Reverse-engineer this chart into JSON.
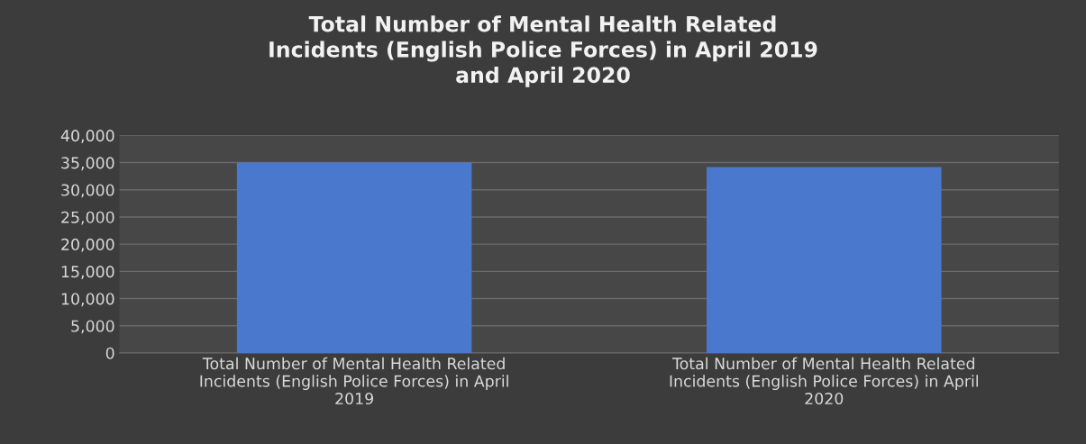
{
  "chart_data": {
    "type": "bar",
    "title": "Total Number of Mental Health Related\nIncidents (English Police Forces) in April 2019\nand April 2020",
    "categories": [
      "Total Number of Mental Health Related\nIncidents (English Police Forces) in April\n2019",
      "Total Number of Mental Health Related\nIncidents (English Police Forces) in April\n2020"
    ],
    "values": [
      35000,
      34200
    ],
    "color": "#4a78cc",
    "ylim": [
      0,
      40000
    ],
    "yticks": [
      {
        "value": 0,
        "label": "0"
      },
      {
        "value": 5000,
        "label": "5,000"
      },
      {
        "value": 10000,
        "label": "10,000"
      },
      {
        "value": 15000,
        "label": "15,000"
      },
      {
        "value": 20000,
        "label": "20,000"
      },
      {
        "value": 25000,
        "label": "25,000"
      },
      {
        "value": 30000,
        "label": "30,000"
      },
      {
        "value": 35000,
        "label": "35,000"
      },
      {
        "value": 40000,
        "label": "40,000"
      }
    ],
    "grid": "y",
    "legend": false
  }
}
